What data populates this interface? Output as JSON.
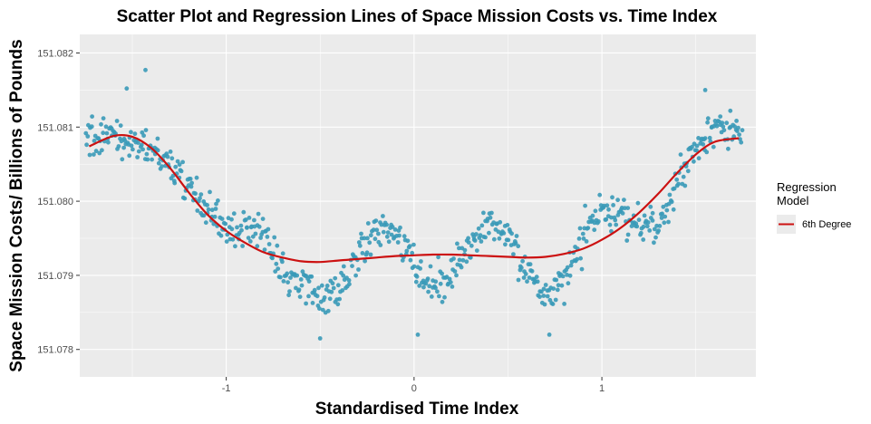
{
  "chart_data": {
    "type": "scatter",
    "title": "Scatter Plot and Regression Lines of Space Mission Costs vs. Time Index",
    "xlabel": "Standardised Time Index",
    "ylabel": "Space Mission Costs/ Billions of Pounds",
    "xlim": [
      -1.78,
      1.82
    ],
    "ylim": [
      151.07763,
      151.08225
    ],
    "x_ticks": [
      -1,
      0,
      1
    ],
    "x_tick_labels": [
      "-1",
      "0",
      "1"
    ],
    "y_ticks": [
      151.078,
      151.079,
      151.08,
      151.081,
      151.082
    ],
    "y_tick_labels": [
      "151.078",
      "151.079",
      "151.080",
      "151.081",
      "151.082"
    ],
    "grid": true,
    "point_color": "#3a9ab8",
    "line_color": "#cc1111",
    "panel_background": "#ebebeb",
    "legend": {
      "title": "Regression\nModel",
      "placement": "right",
      "entries": [
        {
          "label": "6th Degree",
          "color": "#cc1111"
        }
      ]
    },
    "regression_series": {
      "name": "6th Degree",
      "x": [
        -1.73,
        -1.6,
        -1.5,
        -1.4,
        -1.3,
        -1.2,
        -1.1,
        -1.0,
        -0.9,
        -0.8,
        -0.7,
        -0.6,
        -0.5,
        -0.4,
        -0.3,
        -0.2,
        -0.1,
        0.0,
        0.1,
        0.2,
        0.3,
        0.4,
        0.5,
        0.6,
        0.7,
        0.8,
        0.9,
        1.0,
        1.1,
        1.2,
        1.3,
        1.4,
        1.5,
        1.6,
        1.73
      ],
      "y": [
        151.08074,
        151.08088,
        151.08087,
        151.08072,
        151.08045,
        151.08012,
        151.07982,
        151.0796,
        151.07944,
        151.07931,
        151.07924,
        151.07919,
        151.07918,
        151.0792,
        151.07922,
        151.07924,
        151.07926,
        151.07927,
        151.07928,
        151.07928,
        151.07927,
        151.07926,
        151.07925,
        151.07924,
        151.07925,
        151.07929,
        151.07936,
        151.07948,
        151.07964,
        151.07985,
        151.0801,
        151.08038,
        151.08063,
        151.0808,
        151.08085
      ]
    },
    "scatter_profile": {
      "x": [
        -1.75,
        -1.6,
        -1.5,
        -1.4,
        -1.3,
        -1.2,
        -1.1,
        -1.0,
        -0.9,
        -0.8,
        -0.7,
        -0.6,
        -0.5,
        -0.4,
        -0.3,
        -0.2,
        -0.1,
        0.0,
        0.1,
        0.2,
        0.3,
        0.4,
        0.5,
        0.6,
        0.7,
        0.8,
        0.9,
        1.0,
        1.1,
        1.2,
        1.3,
        1.4,
        1.5,
        1.6,
        1.75
      ],
      "y_center": [
        151.08085,
        151.0809,
        151.0808,
        151.0807,
        151.0805,
        151.0802,
        151.0799,
        151.0796,
        151.0796,
        151.0795,
        151.0791,
        151.0789,
        151.0787,
        151.0788,
        151.0793,
        151.0796,
        151.0796,
        151.0792,
        151.0788,
        151.079,
        151.0795,
        151.0797,
        151.0796,
        151.0791,
        151.0787,
        151.0789,
        151.0795,
        151.0799,
        151.0798,
        151.0797,
        151.0797,
        151.0802,
        151.0807,
        151.081,
        151.0809
      ],
      "spread": 0.00033,
      "point_count": 700
    },
    "notable_points": [
      {
        "x": -1.43,
        "y": 151.08177
      },
      {
        "x": -1.53,
        "y": 151.08152
      },
      {
        "x": -0.5,
        "y": 151.07815
      },
      {
        "x": 0.02,
        "y": 151.0782
      },
      {
        "x": 0.72,
        "y": 151.0782
      },
      {
        "x": 1.55,
        "y": 151.0815
      }
    ]
  }
}
